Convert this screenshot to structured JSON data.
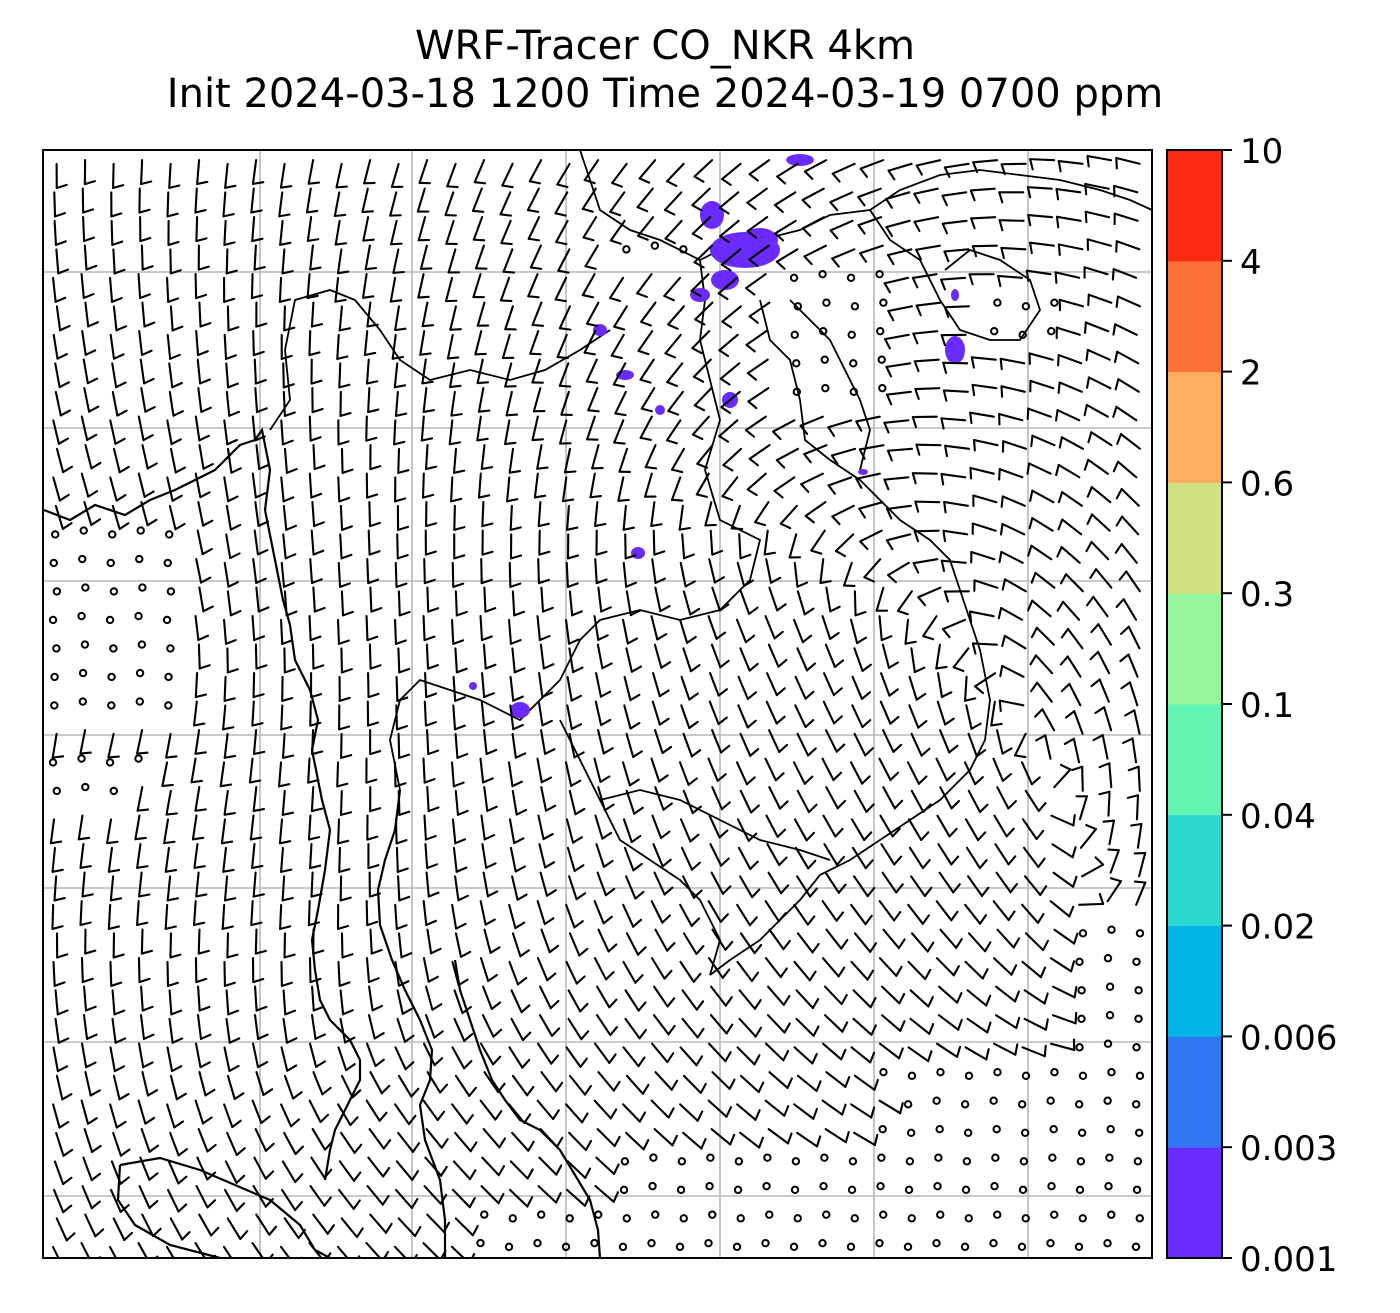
{
  "title": {
    "line1": "WRF-Tracer CO_NKR 4km",
    "line2": "Init 2024-03-18 1200 Time 2024-03-19 0700 ppm"
  },
  "colorbar": {
    "levels": [
      "0.001",
      "0.003",
      "0.006",
      "0.02",
      "0.04",
      "0.1",
      "0.3",
      "0.6",
      "2",
      "4",
      "10"
    ],
    "colors": [
      "#6a2bff",
      "#2f77f2",
      "#00b3e8",
      "#2ad8d0",
      "#62f5b4",
      "#95f59a",
      "#d0df82",
      "#fdae61",
      "#fd7038",
      "#ff2a14"
    ]
  },
  "map": {
    "gridlines": true,
    "coastline_color": "#000000",
    "plume_color": "#6a2bff",
    "wind_barb_color": "#000000",
    "calm_marker": "circle"
  }
}
